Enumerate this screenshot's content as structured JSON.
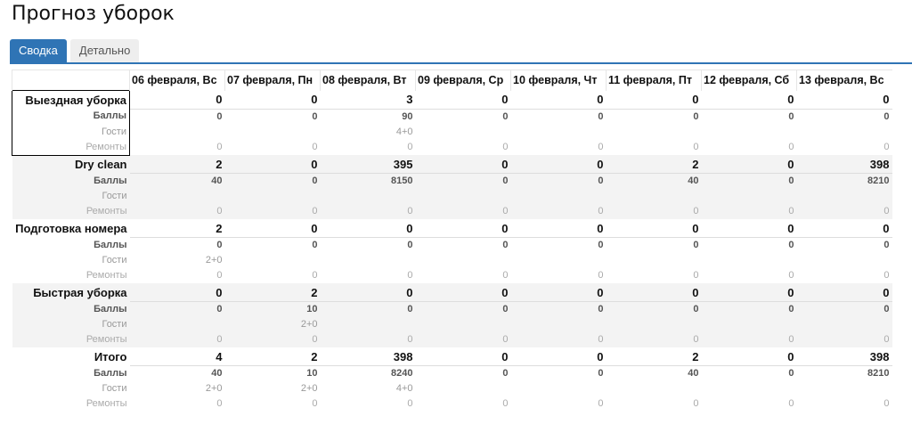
{
  "title": "Прогноз уборок",
  "tabs": [
    {
      "label": "Сводка",
      "active": true
    },
    {
      "label": "Детально",
      "active": false
    }
  ],
  "columns": [
    "06 февраля, Вс",
    "07 февраля, Пн",
    "08 февраля, Вт",
    "09 февраля, Ср",
    "10 февраля, Чт",
    "11 февраля, Пт",
    "12 февраля, Сб",
    "13 февраля, Вс"
  ],
  "sub_labels": {
    "balls": "Баллы",
    "guests": "Гости",
    "repairs": "Ремонты"
  },
  "groups": [
    {
      "name": "Выездная уборка",
      "total": [
        "0",
        "0",
        "3",
        "0",
        "0",
        "0",
        "0",
        "0"
      ],
      "balls": [
        "0",
        "0",
        "90",
        "0",
        "0",
        "0",
        "0",
        "0"
      ],
      "guests": [
        "",
        "",
        "4+0",
        "",
        "",
        "",
        "",
        ""
      ],
      "repairs": [
        "0",
        "0",
        "0",
        "0",
        "0",
        "0",
        "0",
        "0"
      ],
      "selected": true
    },
    {
      "name": "Dry clean",
      "total": [
        "2",
        "0",
        "395",
        "0",
        "0",
        "2",
        "0",
        "398"
      ],
      "balls": [
        "40",
        "0",
        "8150",
        "0",
        "0",
        "40",
        "0",
        "8210"
      ],
      "guests": [
        "",
        "",
        "",
        "",
        "",
        "",
        "",
        ""
      ],
      "repairs": [
        "0",
        "0",
        "0",
        "0",
        "0",
        "0",
        "0",
        "0"
      ]
    },
    {
      "name": "Подготовка номера",
      "total": [
        "2",
        "0",
        "0",
        "0",
        "0",
        "0",
        "0",
        "0"
      ],
      "balls": [
        "0",
        "0",
        "0",
        "0",
        "0",
        "0",
        "0",
        "0"
      ],
      "guests": [
        "2+0",
        "",
        "",
        "",
        "",
        "",
        "",
        ""
      ],
      "repairs": [
        "0",
        "0",
        "0",
        "0",
        "0",
        "0",
        "0",
        "0"
      ]
    },
    {
      "name": "Быстрая уборка",
      "total": [
        "0",
        "2",
        "0",
        "0",
        "0",
        "0",
        "0",
        "0"
      ],
      "balls": [
        "0",
        "10",
        "0",
        "0",
        "0",
        "0",
        "0",
        "0"
      ],
      "guests": [
        "",
        "2+0",
        "",
        "",
        "",
        "",
        "",
        ""
      ],
      "repairs": [
        "0",
        "0",
        "0",
        "0",
        "0",
        "0",
        "0",
        "0"
      ]
    },
    {
      "name": "Итого",
      "total": [
        "4",
        "2",
        "398",
        "0",
        "0",
        "2",
        "0",
        "398"
      ],
      "balls": [
        "40",
        "10",
        "8240",
        "0",
        "0",
        "40",
        "0",
        "8210"
      ],
      "guests": [
        "2+0",
        "2+0",
        "4+0",
        "",
        "",
        "",
        "",
        ""
      ],
      "repairs": [
        "0",
        "0",
        "0",
        "0",
        "0",
        "0",
        "0",
        "0"
      ]
    }
  ]
}
